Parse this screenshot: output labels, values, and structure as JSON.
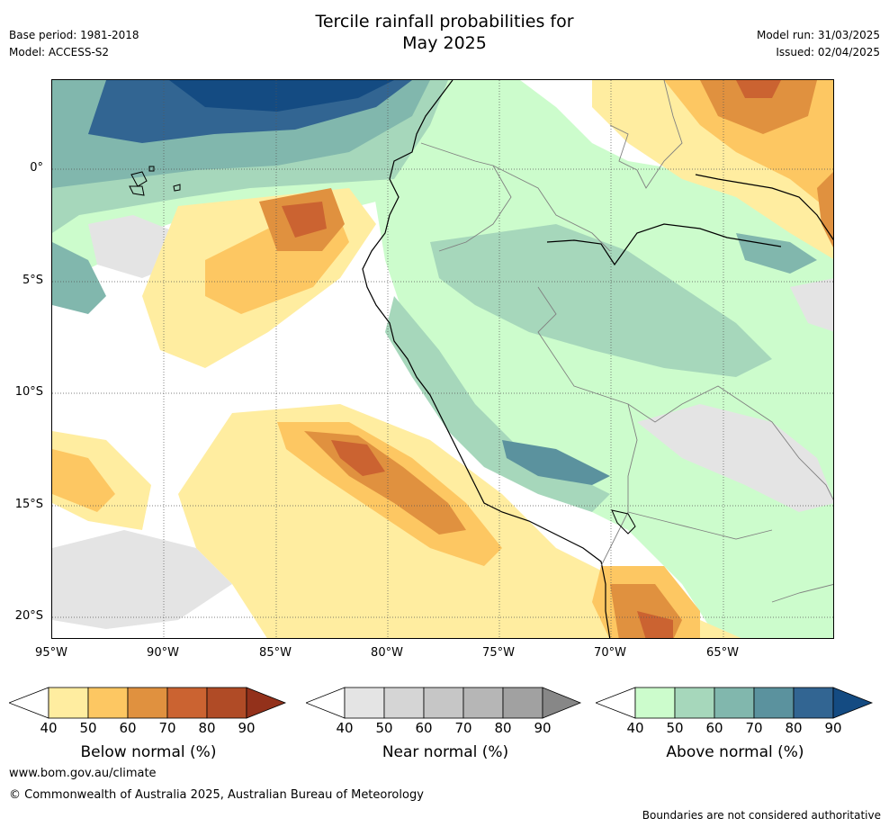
{
  "header": {
    "title_line1": "Tercile rainfall probabilities for",
    "title_line2": "May 2025",
    "base_period": "Base period: 1981-2018",
    "model": "Model: ACCESS-S2",
    "model_run": "Model run: 31/03/2025",
    "issued": "Issued: 02/04/2025"
  },
  "map": {
    "lat_labels": [
      "0°",
      "5°S",
      "10°S",
      "15°S",
      "20°S"
    ],
    "lon_labels": [
      "95°W",
      "90°W",
      "85°W",
      "80°W",
      "75°W",
      "70°W",
      "65°W"
    ]
  },
  "legend": {
    "ticks": [
      "40",
      "50",
      "60",
      "70",
      "80",
      "90"
    ],
    "below": {
      "title": "Below normal (%)",
      "colors": [
        "#ffffff",
        "#ffeda0",
        "#fdc762",
        "#e0913f",
        "#cb6331",
        "#b04b26",
        "#93311b"
      ]
    },
    "near": {
      "title": "Near normal (%)",
      "colors": [
        "#ffffff",
        "#e4e4e4",
        "#d5d5d5",
        "#c6c6c6",
        "#b6b6b6",
        "#a1a1a1",
        "#878787"
      ]
    },
    "above": {
      "title": "Above normal (%)",
      "colors": [
        "#ffffff",
        "#ccfccc",
        "#a6d7bb",
        "#81b7ad",
        "#5b929e",
        "#326592",
        "#144b82"
      ]
    }
  },
  "footer": {
    "url": "www.bom.gov.au/climate",
    "copyright": "© Commonwealth of Australia 2025, Australian Bureau of Meteorology",
    "note": "Boundaries are not considered authoritative"
  }
}
